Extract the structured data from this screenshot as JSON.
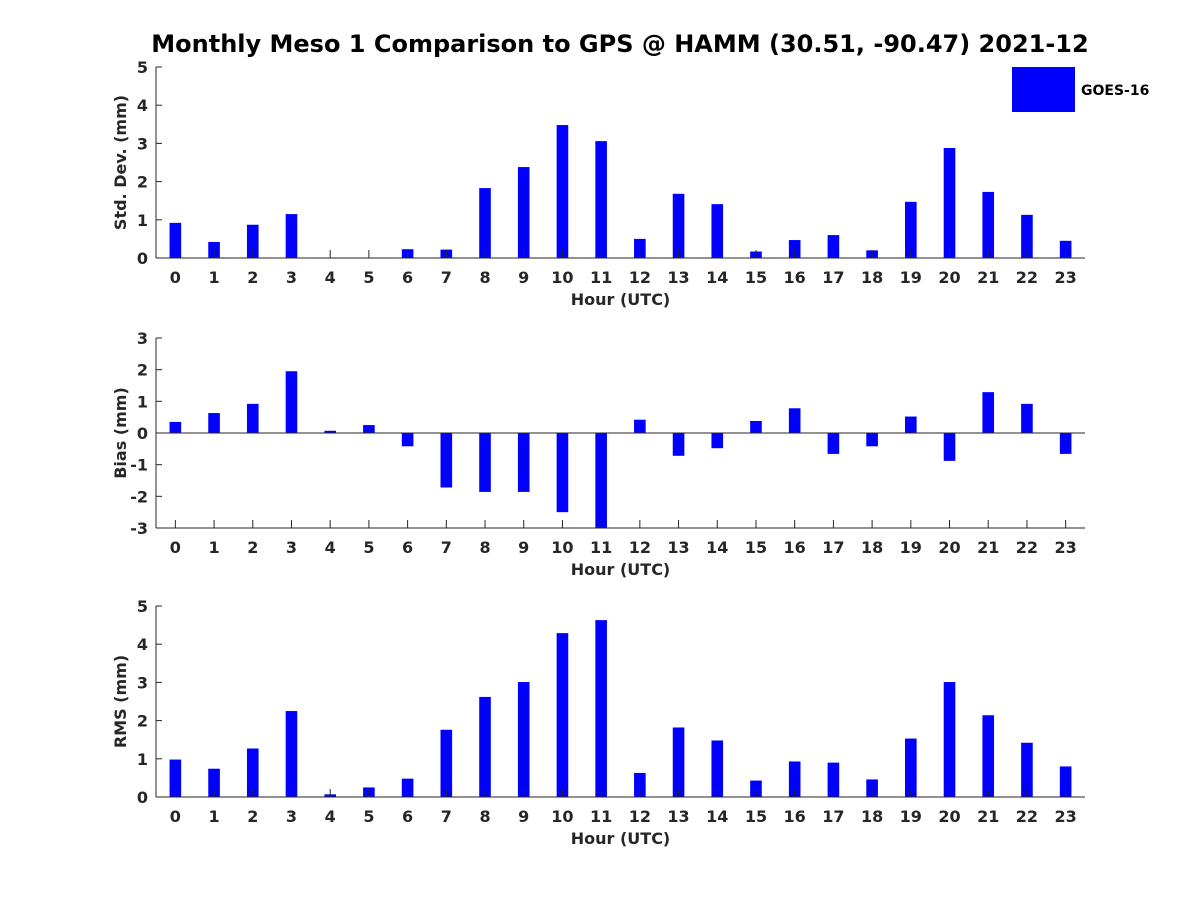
{
  "title": "Monthly Meso 1 Comparison to GPS @ HAMM (30.51, -90.47) 2021-12",
  "colors": {
    "bar": "#0000ff",
    "axis": "#262626",
    "background": "#ffffff"
  },
  "legend": {
    "label": "GOES-16",
    "placement": "top-right"
  },
  "chart_data": [
    {
      "type": "bar",
      "xlabel": "Hour (UTC)",
      "ylabel": "Std. Dev. (mm)",
      "xlim": [
        -0.5,
        23.5
      ],
      "ylim": [
        0,
        5
      ],
      "yticks": [
        0,
        1,
        2,
        3,
        4,
        5
      ],
      "categories": [
        0,
        1,
        2,
        3,
        4,
        5,
        6,
        7,
        8,
        9,
        10,
        11,
        12,
        13,
        14,
        15,
        16,
        17,
        18,
        19,
        20,
        21,
        22,
        23
      ],
      "series": [
        {
          "name": "GOES-16",
          "values": [
            0.92,
            0.42,
            0.87,
            1.15,
            0.0,
            0.0,
            0.23,
            0.22,
            1.83,
            2.38,
            3.48,
            3.06,
            0.5,
            1.68,
            1.41,
            0.17,
            0.47,
            0.6,
            0.2,
            1.47,
            2.88,
            1.73,
            1.13,
            0.45
          ]
        }
      ]
    },
    {
      "type": "bar",
      "xlabel": "Hour (UTC)",
      "ylabel": "Bias (mm)",
      "xlim": [
        -0.5,
        23.5
      ],
      "ylim": [
        -3,
        3
      ],
      "yticks": [
        -3,
        -2,
        -1,
        0,
        1,
        2,
        3
      ],
      "categories": [
        0,
        1,
        2,
        3,
        4,
        5,
        6,
        7,
        8,
        9,
        10,
        11,
        12,
        13,
        14,
        15,
        16,
        17,
        18,
        19,
        20,
        21,
        22,
        23
      ],
      "series": [
        {
          "name": "GOES-16",
          "values": [
            0.35,
            0.63,
            0.92,
            1.95,
            0.07,
            0.25,
            -0.42,
            -1.72,
            -1.86,
            -1.86,
            -2.5,
            -3.0,
            0.42,
            -0.72,
            -0.48,
            0.38,
            0.78,
            -0.66,
            -0.42,
            0.52,
            -0.88,
            1.29,
            0.92,
            -0.66
          ]
        }
      ]
    },
    {
      "type": "bar",
      "xlabel": "Hour (UTC)",
      "ylabel": "RMS (mm)",
      "xlim": [
        -0.5,
        23.5
      ],
      "ylim": [
        0,
        5
      ],
      "yticks": [
        0,
        1,
        2,
        3,
        4,
        5
      ],
      "categories": [
        0,
        1,
        2,
        3,
        4,
        5,
        6,
        7,
        8,
        9,
        10,
        11,
        12,
        13,
        14,
        15,
        16,
        17,
        18,
        19,
        20,
        21,
        22,
        23
      ],
      "series": [
        {
          "name": "GOES-16",
          "values": [
            0.98,
            0.74,
            1.27,
            2.25,
            0.07,
            0.25,
            0.48,
            1.76,
            2.62,
            3.01,
            4.29,
            4.63,
            0.63,
            1.82,
            1.48,
            0.43,
            0.93,
            0.9,
            0.46,
            1.53,
            3.01,
            2.14,
            1.42,
            0.8
          ]
        }
      ]
    }
  ]
}
